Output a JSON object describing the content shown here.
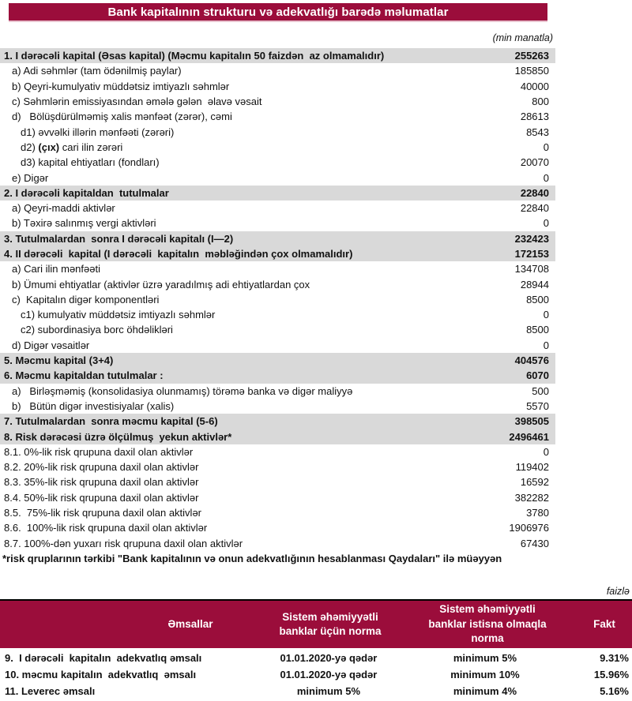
{
  "colors": {
    "accent": "#9B0D3B",
    "section_bg": "#D9D9D9"
  },
  "page": {
    "title": "Bank kapitalının strukturu və adekvatlığı barədə məlumatlar",
    "unit_note": "(min manatla)",
    "percent_note": "faizlə"
  },
  "capital_table": {
    "rows": [
      {
        "label": "1. I dərəcəli kapital (Əsas kapital) (Məcmu kapitalın 50 faizdən  az olmamalıdır)",
        "value": "255263",
        "section": true,
        "indent": 0
      },
      {
        "label": "a) Adi səhmlər (tam ödənilmiş paylar)",
        "value": "185850",
        "indent": 1
      },
      {
        "label": "b) Qeyri-kumulyativ müddətsiz imtiyazlı səhmlər",
        "value": "40000",
        "indent": 1
      },
      {
        "label": "c) Səhmlərin emissiyasından əmələ gələn  əlavə vəsait",
        "value": "800",
        "indent": 1
      },
      {
        "label": "d)   Bölüşdürülməmiş xalis mənfəət (zərər), cəmi",
        "value": "28613",
        "indent": 1
      },
      {
        "label": "d1) əvvəlki illərin mənfəəti (zərəri)",
        "value": "8543",
        "indent": 2
      },
      {
        "label": "d2) (çıx) cari ilin zərəri",
        "value": "0",
        "indent": 2,
        "bold_part": "(çıx)"
      },
      {
        "label": "d3) kapital ehtiyatları (fondları)",
        "value": "20070",
        "indent": 2
      },
      {
        "label": "e) Digər",
        "value": "0",
        "indent": 1
      },
      {
        "label": "2. I dərəcəli kapitaldan  tutulmalar",
        "value": "22840",
        "section": true,
        "indent": 0
      },
      {
        "label": "a) Qeyri-maddi aktivlər",
        "value": "22840",
        "indent": 1
      },
      {
        "label": "b) Təxirə salınmış vergi aktivləri",
        "value": "0",
        "indent": 1
      },
      {
        "label": "3. Tutulmalardan  sonra I dərəcəli kapitalı (I—2)",
        "value": "232423",
        "section": true,
        "indent": 0
      },
      {
        "label": "4. II dərəcəli  kapital (I dərəcəli  kapitalın  məbləğindən çox olmamalıdır)",
        "value": "172153",
        "section": true,
        "indent": 0
      },
      {
        "label": "a) Cari ilin mənfəəti",
        "value": "134708",
        "indent": 1
      },
      {
        "label": "b) Ümumi ehtiyatlar (aktivlər üzrə yaradılmış adi ehtiyatlardan çox",
        "value": "28944",
        "indent": 1
      },
      {
        "label": "c)  Kapitalın digər komponentləri",
        "value": "8500",
        "indent": 1
      },
      {
        "label": "c1) kumulyativ müddətsiz imtiyazlı səhmlər",
        "value": "0",
        "indent": 2
      },
      {
        "label": "c2) subordinasiya borc öhdəlikləri",
        "value": "8500",
        "indent": 2
      },
      {
        "label": "d) Digər vəsaitlər",
        "value": "0",
        "indent": 1
      },
      {
        "label": "5. Məcmu kapital (3+4)",
        "value": "404576",
        "section": true,
        "indent": 0
      },
      {
        "label": "6. Məcmu kapitaldan tutulmalar :",
        "value": "6070",
        "section": true,
        "indent": 0
      },
      {
        "label": "a)   Birləşməmiş (konsolidasiya olunmamış) törəmə banka və digər maliyyə",
        "value": "500",
        "indent": 1
      },
      {
        "label": "b)   Bütün digər investisiyalar (xalis)",
        "value": "5570",
        "indent": 1
      },
      {
        "label": "7. Tutulmalardan  sonra məcmu kapital (5-6)",
        "value": "398505",
        "section": true,
        "indent": 0
      },
      {
        "label": "8. Risk dərəcəsi üzrə ölçülmuş  yekun aktivlər*",
        "value": "2496461",
        "section": true,
        "indent": 0
      },
      {
        "label": "8.1. 0%-lik risk qrupuna daxil olan aktivlər",
        "value": "0",
        "indent": 0
      },
      {
        "label": "8.2. 20%-lik risk qrupuna daxil olan aktivlər",
        "value": "119402",
        "indent": 0
      },
      {
        "label": "8.3. 35%-lik risk qrupuna daxil olan aktivlər",
        "value": "16592",
        "indent": 0
      },
      {
        "label": "8.4. 50%-lik risk qrupuna daxil olan aktivlər",
        "value": "382282",
        "indent": 0
      },
      {
        "label": "8.5.  75%-lik risk qrupuna daxil olan aktivlər",
        "value": "3780",
        "indent": 0
      },
      {
        "label": "8.6.  100%-lik risk qrupuna daxil olan aktivlər",
        "value": "1906976",
        "indent": 0
      },
      {
        "label": "8.7. 100%-dən yuxarı risk qrupuna daxil olan aktivlər",
        "value": "67430",
        "indent": 0
      }
    ],
    "footnote": "*risk qruplarının tərkibi \"Bank kapitalının və onun adekvatlığının hesablanması Qaydaları\" ilə müəyyən"
  },
  "ratios_table": {
    "headers": [
      "Əmsallar",
      "Sistem əhəmiyyətli banklar üçün norma",
      "Sistem əhəmiyyətli banklar istisna olmaqla norma",
      "Fakt"
    ],
    "rows": [
      {
        "label": "9.  I dərəcəli  kapitalın  adekvatlıq əmsalı",
        "norm_systemic": "01.01.2020-yə qədər",
        "norm_non_systemic": "minimum 5%",
        "fact": "9.31%"
      },
      {
        "label": "10. məcmu kapitalın  adekvatlıq  əmsalı",
        "norm_systemic": "01.01.2020-yə qədər",
        "norm_non_systemic": "minimum 10%",
        "fact": "15.96%"
      },
      {
        "label": "11. Leverec əmsalı",
        "norm_systemic": "minimum 5%",
        "norm_non_systemic": "minimum 4%",
        "fact": "5.16%"
      }
    ]
  }
}
